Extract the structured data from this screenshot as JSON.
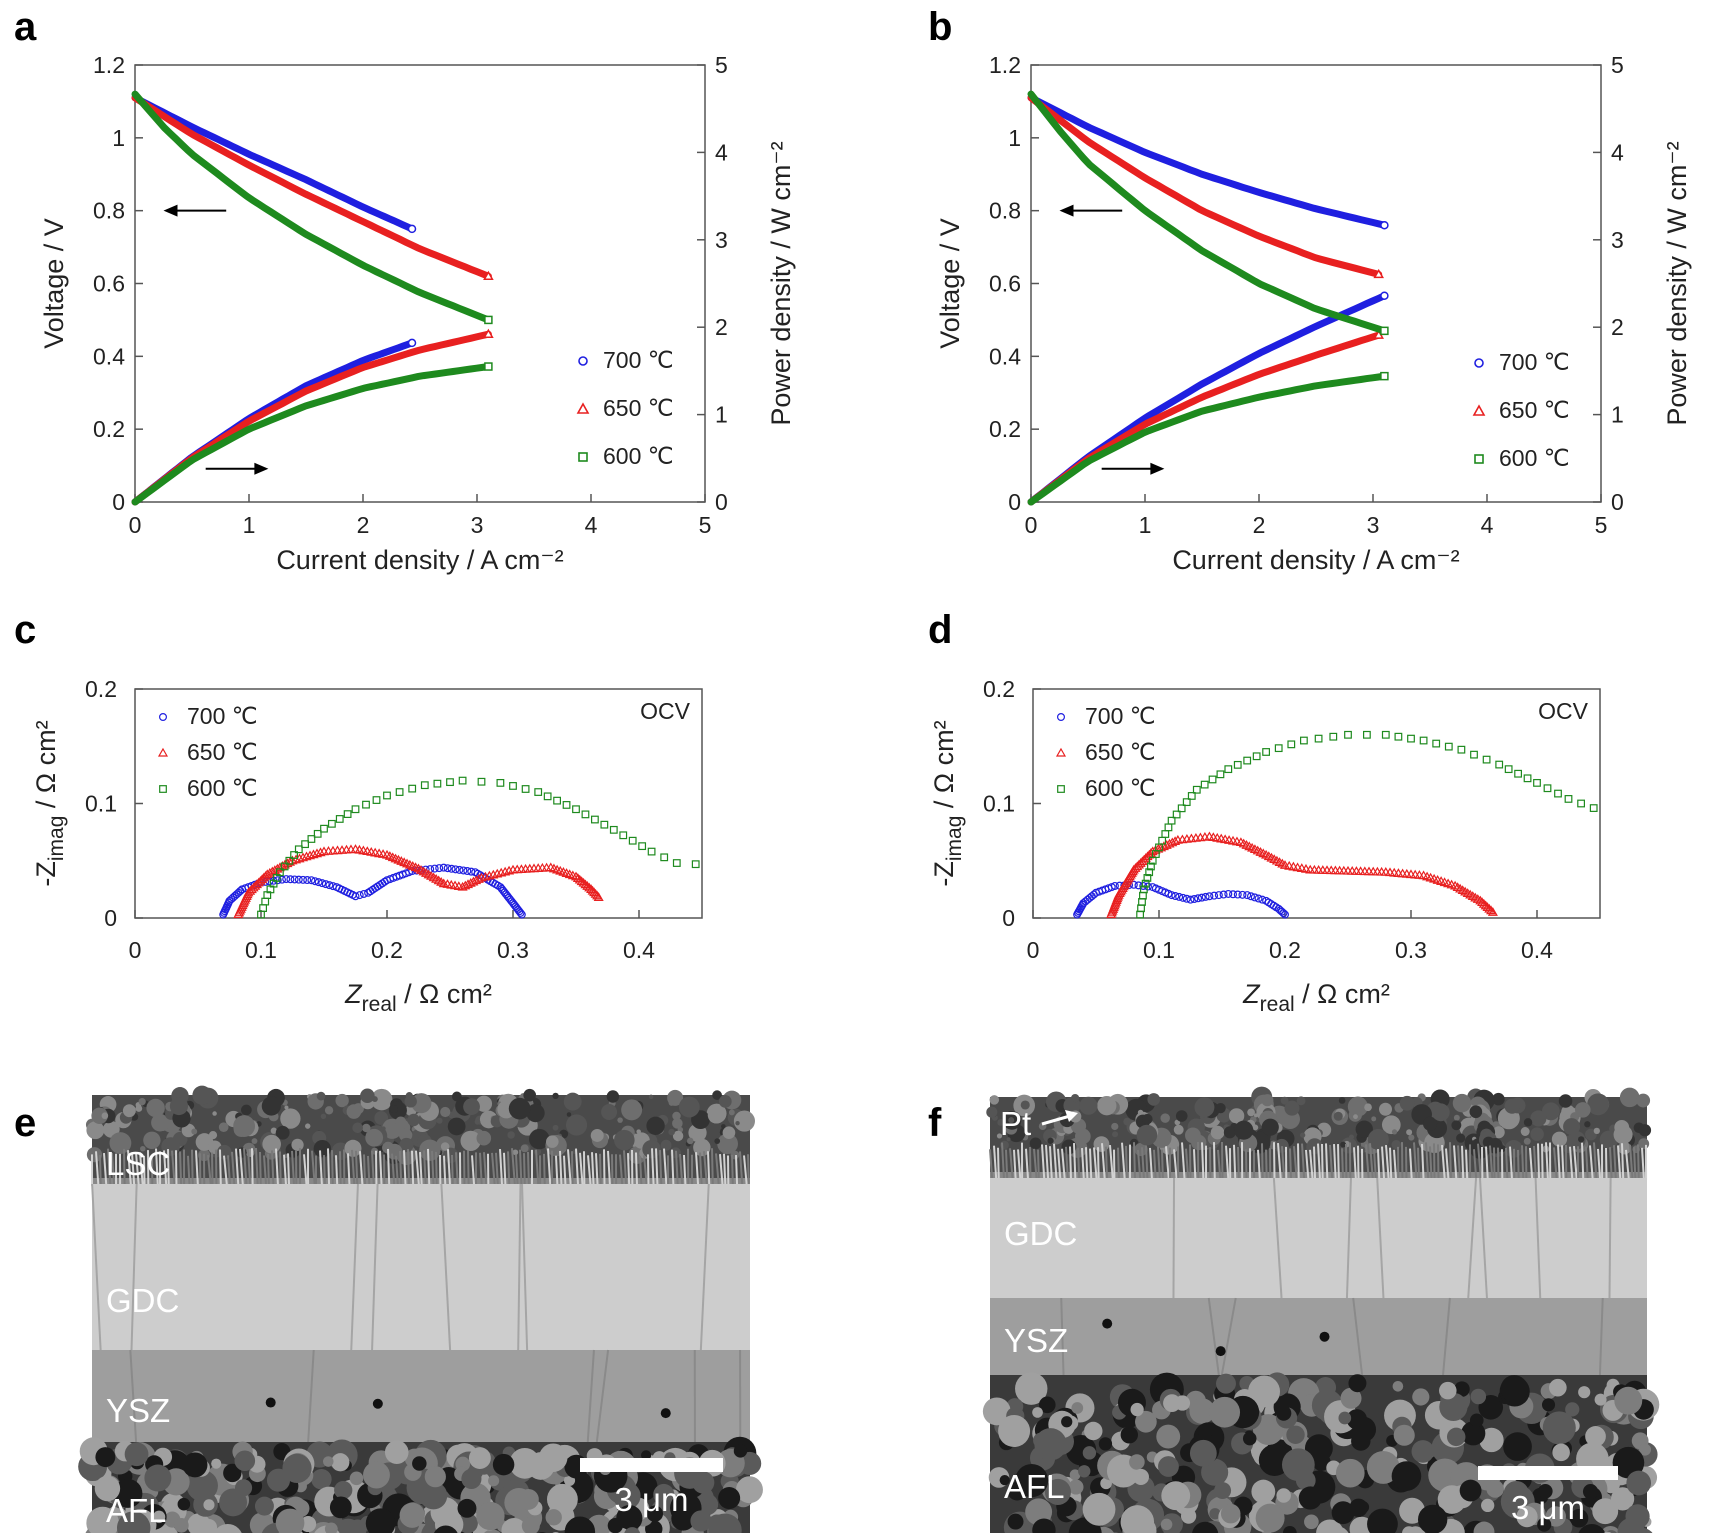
{
  "panels": {
    "a": "a",
    "b": "b",
    "c": "c",
    "d": "d",
    "e": "e",
    "f": "f"
  },
  "legend_labels": [
    "700 ℃",
    "650 ℃",
    "600 ℃"
  ],
  "colors": {
    "700": "#1f1fe0",
    "650": "#e82020",
    "600": "#1e8a1e"
  },
  "chart_data": [
    {
      "panel": "a",
      "type": "line",
      "xlabel": "Current density / A cm⁻²",
      "ylabel": "Voltage / V",
      "y2label": "Power density / W cm⁻²",
      "xlim": [
        0,
        5
      ],
      "ylim": [
        0,
        1.2
      ],
      "y2lim": [
        0,
        5
      ],
      "xticks": [
        "0",
        "1",
        "2",
        "3",
        "4",
        "5"
      ],
      "yticks": [
        "0",
        "0.2",
        "0.4",
        "0.6",
        "0.8",
        "1",
        "1.2"
      ],
      "y2ticks": [
        "0",
        "1",
        "2",
        "3",
        "4",
        "5"
      ],
      "legend_position": "bottom-right",
      "series": [
        {
          "name": "700 ℃",
          "jmax": 2.43,
          "voltage": [
            [
              0,
              1.11
            ],
            [
              0.5,
              1.03
            ],
            [
              1,
              0.955
            ],
            [
              1.5,
              0.885
            ],
            [
              2,
              0.81
            ],
            [
              2.43,
              0.75
            ]
          ],
          "power": [
            [
              0,
              0
            ],
            [
              0.5,
              0.515
            ],
            [
              1,
              0.955
            ],
            [
              1.5,
              1.33
            ],
            [
              2,
              1.62
            ],
            [
              2.43,
              1.82
            ]
          ]
        },
        {
          "name": "650 ℃",
          "jmax": 3.1,
          "voltage": [
            [
              0,
              1.11
            ],
            [
              0.5,
              1.01
            ],
            [
              1,
              0.925
            ],
            [
              1.5,
              0.845
            ],
            [
              2,
              0.77
            ],
            [
              2.5,
              0.695
            ],
            [
              3.1,
              0.62
            ]
          ],
          "power": [
            [
              0,
              0
            ],
            [
              0.5,
              0.505
            ],
            [
              1,
              0.925
            ],
            [
              1.5,
              1.27
            ],
            [
              2,
              1.54
            ],
            [
              2.5,
              1.74
            ],
            [
              3.1,
              1.92
            ]
          ]
        },
        {
          "name": "600 ℃",
          "jmax": 3.1,
          "voltage": [
            [
              0,
              1.12
            ],
            [
              0.25,
              1.03
            ],
            [
              0.5,
              0.955
            ],
            [
              1,
              0.835
            ],
            [
              1.5,
              0.735
            ],
            [
              2,
              0.65
            ],
            [
              2.5,
              0.575
            ],
            [
              3.1,
              0.5
            ]
          ],
          "power": [
            [
              0,
              0
            ],
            [
              0.5,
              0.48
            ],
            [
              1,
              0.835
            ],
            [
              1.5,
              1.1
            ],
            [
              2,
              1.3
            ],
            [
              2.5,
              1.44
            ],
            [
              3.1,
              1.55
            ]
          ]
        }
      ]
    },
    {
      "panel": "b",
      "type": "line",
      "xlabel": "Current density / A cm⁻²",
      "ylabel": "Voltage / V",
      "y2label": "Power density / W cm⁻²",
      "xlim": [
        0,
        5
      ],
      "ylim": [
        0,
        1.2
      ],
      "y2lim": [
        0,
        5
      ],
      "xticks": [
        "0",
        "1",
        "2",
        "3",
        "4",
        "5"
      ],
      "yticks": [
        "0",
        "0.2",
        "0.4",
        "0.6",
        "0.8",
        "1",
        "1.2"
      ],
      "y2ticks": [
        "0",
        "1",
        "2",
        "3",
        "4",
        "5"
      ],
      "legend_position": "bottom-right",
      "series": [
        {
          "name": "700 ℃",
          "jmax": 3.1,
          "voltage": [
            [
              0,
              1.11
            ],
            [
              0.5,
              1.03
            ],
            [
              1,
              0.96
            ],
            [
              1.5,
              0.9
            ],
            [
              2,
              0.85
            ],
            [
              2.5,
              0.805
            ],
            [
              3.1,
              0.76
            ]
          ],
          "power": [
            [
              0,
              0
            ],
            [
              0.5,
              0.515
            ],
            [
              1,
              0.96
            ],
            [
              1.5,
              1.35
            ],
            [
              2,
              1.7
            ],
            [
              2.5,
              2.01
            ],
            [
              3.1,
              2.36
            ]
          ]
        },
        {
          "name": "650 ℃",
          "jmax": 3.05,
          "voltage": [
            [
              0,
              1.11
            ],
            [
              0.5,
              0.99
            ],
            [
              1,
              0.89
            ],
            [
              1.5,
              0.8
            ],
            [
              2,
              0.73
            ],
            [
              2.5,
              0.67
            ],
            [
              3.05,
              0.625
            ]
          ],
          "power": [
            [
              0,
              0
            ],
            [
              0.5,
              0.495
            ],
            [
              1,
              0.89
            ],
            [
              1.5,
              1.2
            ],
            [
              2,
              1.46
            ],
            [
              2.5,
              1.68
            ],
            [
              3.05,
              1.91
            ]
          ]
        },
        {
          "name": "600 ℃",
          "jmax": 3.1,
          "voltage": [
            [
              0,
              1.12
            ],
            [
              0.25,
              1.02
            ],
            [
              0.5,
              0.93
            ],
            [
              1,
              0.8
            ],
            [
              1.5,
              0.69
            ],
            [
              2,
              0.6
            ],
            [
              2.5,
              0.53
            ],
            [
              3.1,
              0.47
            ]
          ],
          "power": [
            [
              0,
              0
            ],
            [
              0.5,
              0.465
            ],
            [
              1,
              0.8
            ],
            [
              1.5,
              1.04
            ],
            [
              2,
              1.2
            ],
            [
              2.5,
              1.33
            ],
            [
              3.1,
              1.44
            ]
          ]
        }
      ]
    },
    {
      "panel": "c",
      "type": "scatter",
      "xlabel_main": "Z",
      "xlabel_sub": "real",
      "xlabel_rest": " / Ω cm²",
      "ylabel_main": "-Z",
      "ylabel_sub": "imag",
      "ylabel_rest": " / Ω cm²",
      "xlim": [
        0,
        0.45
      ],
      "ylim": [
        0,
        0.2
      ],
      "xticks": [
        "0",
        "0.1",
        "0.2",
        "0.3",
        "0.4"
      ],
      "yticks": [
        "0",
        "0.1",
        "0.2"
      ],
      "annotation": "OCV",
      "legend_position": "top-left",
      "series": [
        {
          "name": "700 ℃",
          "marker": "circle",
          "points": [
            [
              0.07,
              0.003
            ],
            [
              0.075,
              0.015
            ],
            [
              0.085,
              0.025
            ],
            [
              0.1,
              0.031
            ],
            [
              0.12,
              0.034
            ],
            [
              0.14,
              0.033
            ],
            [
              0.16,
              0.027
            ],
            [
              0.175,
              0.019
            ],
            [
              0.185,
              0.022
            ],
            [
              0.2,
              0.033
            ],
            [
              0.22,
              0.041
            ],
            [
              0.245,
              0.044
            ],
            [
              0.27,
              0.04
            ],
            [
              0.29,
              0.027
            ],
            [
              0.3,
              0.013
            ],
            [
              0.307,
              0.003
            ]
          ]
        },
        {
          "name": "650 ℃",
          "marker": "triangle",
          "points": [
            [
              0.082,
              0.003
            ],
            [
              0.09,
              0.022
            ],
            [
              0.105,
              0.038
            ],
            [
              0.125,
              0.05
            ],
            [
              0.15,
              0.058
            ],
            [
              0.175,
              0.06
            ],
            [
              0.2,
              0.055
            ],
            [
              0.225,
              0.043
            ],
            [
              0.245,
              0.03
            ],
            [
              0.26,
              0.027
            ],
            [
              0.275,
              0.035
            ],
            [
              0.3,
              0.042
            ],
            [
              0.33,
              0.044
            ],
            [
              0.35,
              0.036
            ],
            [
              0.362,
              0.025
            ],
            [
              0.368,
              0.018
            ]
          ]
        },
        {
          "name": "600 ℃",
          "marker": "square",
          "points": [
            [
              0.1,
              0.003
            ],
            [
              0.105,
              0.02
            ],
            [
              0.115,
              0.04
            ],
            [
              0.13,
              0.06
            ],
            [
              0.15,
              0.078
            ],
            [
              0.175,
              0.095
            ],
            [
              0.2,
              0.107
            ],
            [
              0.23,
              0.116
            ],
            [
              0.26,
              0.12
            ],
            [
              0.29,
              0.118
            ],
            [
              0.32,
              0.11
            ],
            [
              0.35,
              0.095
            ],
            [
              0.38,
              0.077
            ],
            [
              0.41,
              0.058
            ],
            [
              0.43,
              0.048
            ],
            [
              0.445,
              0.047
            ]
          ]
        }
      ]
    },
    {
      "panel": "d",
      "type": "scatter",
      "xlabel_main": "Z",
      "xlabel_sub": "real",
      "xlabel_rest": " / Ω cm²",
      "ylabel_main": "-Z",
      "ylabel_sub": "imag",
      "ylabel_rest": " / Ω cm²",
      "xlim": [
        0,
        0.45
      ],
      "ylim": [
        0,
        0.2
      ],
      "xticks": [
        "0",
        "0.1",
        "0.2",
        "0.3",
        "0.4"
      ],
      "yticks": [
        "0",
        "0.1",
        "0.2"
      ],
      "annotation": "OCV",
      "legend_position": "top-left",
      "series": [
        {
          "name": "700 ℃",
          "marker": "circle",
          "points": [
            [
              0.035,
              0.003
            ],
            [
              0.04,
              0.013
            ],
            [
              0.05,
              0.022
            ],
            [
              0.065,
              0.028
            ],
            [
              0.08,
              0.029
            ],
            [
              0.095,
              0.027
            ],
            [
              0.11,
              0.02
            ],
            [
              0.125,
              0.016
            ],
            [
              0.14,
              0.019
            ],
            [
              0.155,
              0.021
            ],
            [
              0.17,
              0.02
            ],
            [
              0.185,
              0.015
            ],
            [
              0.195,
              0.008
            ],
            [
              0.2,
              0.003
            ]
          ]
        },
        {
          "name": "650 ℃",
          "marker": "triangle",
          "points": [
            [
              0.062,
              0.003
            ],
            [
              0.068,
              0.02
            ],
            [
              0.08,
              0.042
            ],
            [
              0.095,
              0.058
            ],
            [
              0.115,
              0.068
            ],
            [
              0.14,
              0.071
            ],
            [
              0.165,
              0.066
            ],
            [
              0.185,
              0.055
            ],
            [
              0.2,
              0.046
            ],
            [
              0.22,
              0.042
            ],
            [
              0.25,
              0.041
            ],
            [
              0.28,
              0.04
            ],
            [
              0.31,
              0.037
            ],
            [
              0.335,
              0.028
            ],
            [
              0.355,
              0.015
            ],
            [
              0.365,
              0.005
            ]
          ]
        },
        {
          "name": "600 ℃",
          "marker": "square",
          "points": [
            [
              0.085,
              0.003
            ],
            [
              0.088,
              0.025
            ],
            [
              0.095,
              0.05
            ],
            [
              0.11,
              0.085
            ],
            [
              0.13,
              0.112
            ],
            [
              0.155,
              0.13
            ],
            [
              0.185,
              0.145
            ],
            [
              0.215,
              0.155
            ],
            [
              0.25,
              0.16
            ],
            [
              0.28,
              0.16
            ],
            [
              0.31,
              0.155
            ],
            [
              0.34,
              0.147
            ],
            [
              0.37,
              0.134
            ],
            [
              0.4,
              0.118
            ],
            [
              0.425,
              0.104
            ],
            [
              0.445,
              0.096
            ]
          ]
        }
      ]
    }
  ],
  "micrographs": {
    "e": {
      "layers": [
        "LSC",
        "GDC",
        "YSZ",
        "AFL"
      ],
      "scalebar": "3 μm"
    },
    "f": {
      "layers": [
        "Pt",
        "GDC",
        "YSZ",
        "AFL"
      ],
      "scalebar": "3 μm"
    }
  }
}
